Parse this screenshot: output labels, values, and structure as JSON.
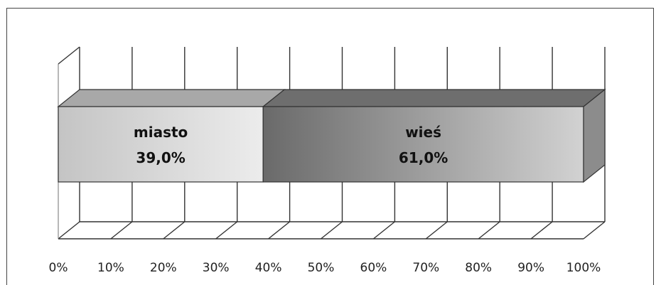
{
  "chart_data": {
    "type": "bar",
    "orientation": "horizontal",
    "stacked": "100%",
    "style": "3d",
    "categories": [
      ""
    ],
    "series": [
      {
        "name": "miasto",
        "values": [
          39.0
        ],
        "value_label": "39,0%",
        "color": "#d6d6d6"
      },
      {
        "name": "wieś",
        "values": [
          61.0
        ],
        "value_label": "61,0%",
        "color": "#8a8a8a"
      }
    ],
    "xlim": [
      0,
      100
    ],
    "xticks": [
      "0%",
      "10%",
      "20%",
      "30%",
      "40%",
      "50%",
      "60%",
      "70%",
      "80%",
      "90%",
      "100%"
    ],
    "grid": true,
    "legend": "none"
  }
}
